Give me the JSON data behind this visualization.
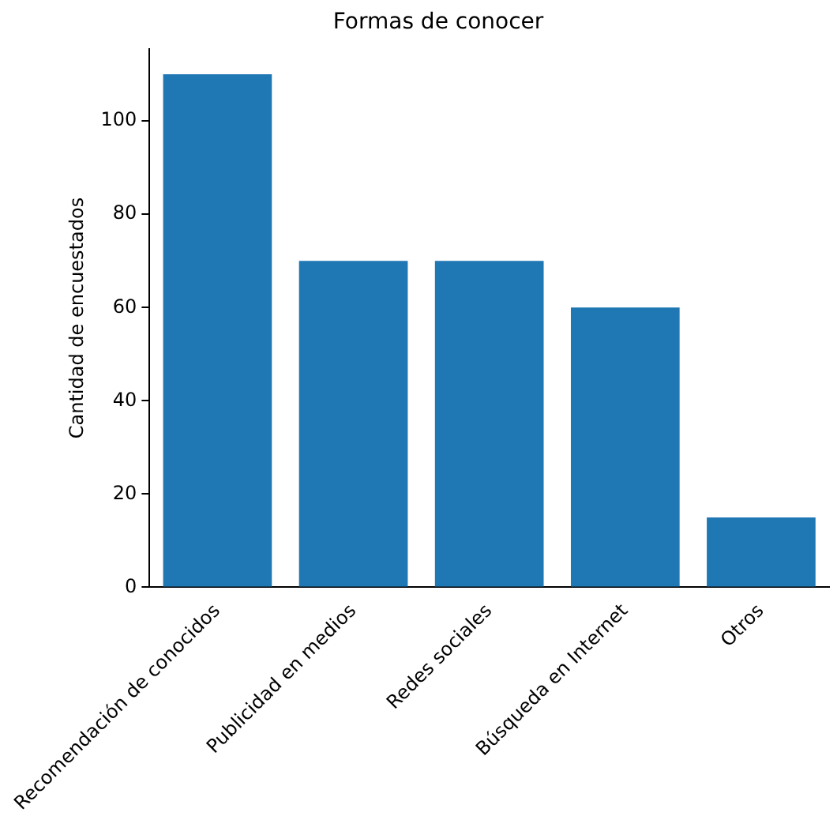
{
  "chart_data": {
    "type": "bar",
    "title": "Formas de conocer",
    "ylabel": "Cantidad de encuestados",
    "categories": [
      "Recomendación de conocidos",
      "Publicidad en medios",
      "Redes sociales",
      "Búsqueda en Internet",
      "Otros"
    ],
    "values": [
      110,
      70,
      70,
      60,
      15
    ],
    "color": "#1f77b4",
    "ylim": [
      0,
      115.5
    ],
    "yticks": [
      0,
      20,
      40,
      60,
      80,
      100
    ],
    "grid": false,
    "legend": false
  }
}
